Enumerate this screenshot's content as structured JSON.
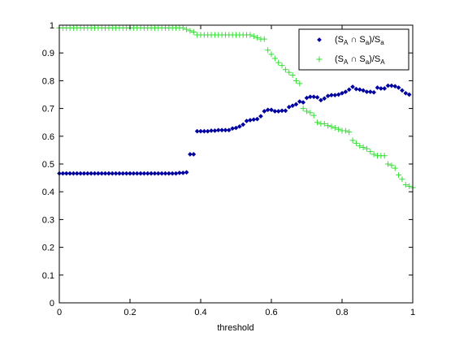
{
  "chart_data": {
    "type": "scatter",
    "xlabel": "threshold",
    "xlim": [
      0,
      1
    ],
    "ylim": [
      0,
      1
    ],
    "xticks": [
      "0",
      "0.2",
      "0.4",
      "0.6",
      "0.8",
      "1"
    ],
    "yticks": [
      "0",
      "0.1",
      "0.2",
      "0.3",
      "0.4",
      "0.5",
      "0.6",
      "0.7",
      "0.8",
      "0.9",
      "1"
    ],
    "grid": false,
    "legend_position": "top-right",
    "series": [
      {
        "name_main": "(S",
        "name_sub1": "A",
        "name_mid": " ∩ S",
        "name_sub2": "a",
        "name_end": ")/S",
        "name_sub3": "a",
        "marker": "diamond",
        "color": "#0000a0",
        "points": [
          [
            0.0,
            0.466
          ],
          [
            0.01,
            0.466
          ],
          [
            0.02,
            0.466
          ],
          [
            0.03,
            0.466
          ],
          [
            0.04,
            0.466
          ],
          [
            0.05,
            0.466
          ],
          [
            0.06,
            0.466
          ],
          [
            0.07,
            0.466
          ],
          [
            0.08,
            0.466
          ],
          [
            0.09,
            0.466
          ],
          [
            0.1,
            0.466
          ],
          [
            0.11,
            0.466
          ],
          [
            0.12,
            0.466
          ],
          [
            0.13,
            0.466
          ],
          [
            0.14,
            0.466
          ],
          [
            0.15,
            0.466
          ],
          [
            0.16,
            0.466
          ],
          [
            0.17,
            0.466
          ],
          [
            0.18,
            0.466
          ],
          [
            0.19,
            0.466
          ],
          [
            0.2,
            0.466
          ],
          [
            0.21,
            0.466
          ],
          [
            0.22,
            0.466
          ],
          [
            0.23,
            0.466
          ],
          [
            0.24,
            0.466
          ],
          [
            0.25,
            0.466
          ],
          [
            0.26,
            0.466
          ],
          [
            0.27,
            0.466
          ],
          [
            0.28,
            0.466
          ],
          [
            0.29,
            0.466
          ],
          [
            0.3,
            0.466
          ],
          [
            0.31,
            0.466
          ],
          [
            0.32,
            0.466
          ],
          [
            0.33,
            0.466
          ],
          [
            0.34,
            0.468
          ],
          [
            0.35,
            0.468
          ],
          [
            0.36,
            0.47
          ],
          [
            0.37,
            0.535
          ],
          [
            0.38,
            0.535
          ],
          [
            0.39,
            0.618
          ],
          [
            0.4,
            0.618
          ],
          [
            0.41,
            0.618
          ],
          [
            0.42,
            0.618
          ],
          [
            0.43,
            0.62
          ],
          [
            0.44,
            0.62
          ],
          [
            0.45,
            0.622
          ],
          [
            0.46,
            0.622
          ],
          [
            0.47,
            0.622
          ],
          [
            0.48,
            0.622
          ],
          [
            0.49,
            0.628
          ],
          [
            0.5,
            0.63
          ],
          [
            0.51,
            0.635
          ],
          [
            0.52,
            0.642
          ],
          [
            0.53,
            0.655
          ],
          [
            0.54,
            0.658
          ],
          [
            0.55,
            0.66
          ],
          [
            0.56,
            0.662
          ],
          [
            0.57,
            0.672
          ],
          [
            0.58,
            0.69
          ],
          [
            0.59,
            0.695
          ],
          [
            0.6,
            0.695
          ],
          [
            0.61,
            0.69
          ],
          [
            0.62,
            0.69
          ],
          [
            0.63,
            0.692
          ],
          [
            0.64,
            0.692
          ],
          [
            0.65,
            0.705
          ],
          [
            0.66,
            0.71
          ],
          [
            0.67,
            0.715
          ],
          [
            0.68,
            0.725
          ],
          [
            0.69,
            0.722
          ],
          [
            0.7,
            0.738
          ],
          [
            0.71,
            0.742
          ],
          [
            0.72,
            0.742
          ],
          [
            0.73,
            0.74
          ],
          [
            0.74,
            0.73
          ],
          [
            0.75,
            0.736
          ],
          [
            0.76,
            0.745
          ],
          [
            0.77,
            0.748
          ],
          [
            0.78,
            0.748
          ],
          [
            0.79,
            0.75
          ],
          [
            0.8,
            0.755
          ],
          [
            0.81,
            0.76
          ],
          [
            0.82,
            0.768
          ],
          [
            0.83,
            0.778
          ],
          [
            0.84,
            0.77
          ],
          [
            0.85,
            0.768
          ],
          [
            0.86,
            0.765
          ],
          [
            0.87,
            0.76
          ],
          [
            0.88,
            0.76
          ],
          [
            0.89,
            0.758
          ],
          [
            0.9,
            0.775
          ],
          [
            0.91,
            0.772
          ],
          [
            0.92,
            0.772
          ],
          [
            0.93,
            0.782
          ],
          [
            0.94,
            0.782
          ],
          [
            0.95,
            0.78
          ],
          [
            0.96,
            0.775
          ],
          [
            0.97,
            0.765
          ],
          [
            0.98,
            0.755
          ],
          [
            0.99,
            0.75
          ]
        ]
      },
      {
        "name_main": "(S",
        "name_sub1": "A",
        "name_mid": " ∩ S",
        "name_sub2": "a",
        "name_end": ")/S",
        "name_sub3": "A",
        "marker": "plus",
        "color": "#33dd33",
        "points": [
          [
            0.0,
            0.99
          ],
          [
            0.01,
            0.99
          ],
          [
            0.02,
            0.99
          ],
          [
            0.03,
            0.99
          ],
          [
            0.04,
            0.99
          ],
          [
            0.05,
            0.99
          ],
          [
            0.06,
            0.99
          ],
          [
            0.07,
            0.99
          ],
          [
            0.08,
            0.99
          ],
          [
            0.09,
            0.99
          ],
          [
            0.1,
            0.99
          ],
          [
            0.11,
            0.99
          ],
          [
            0.12,
            0.99
          ],
          [
            0.13,
            0.99
          ],
          [
            0.14,
            0.99
          ],
          [
            0.15,
            0.99
          ],
          [
            0.16,
            0.99
          ],
          [
            0.17,
            0.99
          ],
          [
            0.18,
            0.99
          ],
          [
            0.19,
            0.99
          ],
          [
            0.2,
            0.99
          ],
          [
            0.21,
            0.99
          ],
          [
            0.22,
            0.99
          ],
          [
            0.23,
            0.99
          ],
          [
            0.24,
            0.99
          ],
          [
            0.25,
            0.99
          ],
          [
            0.26,
            0.99
          ],
          [
            0.27,
            0.99
          ],
          [
            0.28,
            0.99
          ],
          [
            0.29,
            0.99
          ],
          [
            0.3,
            0.99
          ],
          [
            0.31,
            0.99
          ],
          [
            0.32,
            0.99
          ],
          [
            0.33,
            0.99
          ],
          [
            0.34,
            0.99
          ],
          [
            0.35,
            0.99
          ],
          [
            0.36,
            0.985
          ],
          [
            0.37,
            0.98
          ],
          [
            0.38,
            0.975
          ],
          [
            0.39,
            0.965
          ],
          [
            0.4,
            0.965
          ],
          [
            0.41,
            0.965
          ],
          [
            0.42,
            0.965
          ],
          [
            0.43,
            0.965
          ],
          [
            0.44,
            0.965
          ],
          [
            0.45,
            0.965
          ],
          [
            0.46,
            0.965
          ],
          [
            0.47,
            0.965
          ],
          [
            0.48,
            0.965
          ],
          [
            0.49,
            0.965
          ],
          [
            0.5,
            0.965
          ],
          [
            0.51,
            0.965
          ],
          [
            0.52,
            0.965
          ],
          [
            0.53,
            0.965
          ],
          [
            0.54,
            0.965
          ],
          [
            0.55,
            0.96
          ],
          [
            0.56,
            0.955
          ],
          [
            0.57,
            0.95
          ],
          [
            0.58,
            0.95
          ],
          [
            0.59,
            0.91
          ],
          [
            0.6,
            0.895
          ],
          [
            0.61,
            0.88
          ],
          [
            0.62,
            0.865
          ],
          [
            0.63,
            0.855
          ],
          [
            0.64,
            0.84
          ],
          [
            0.65,
            0.83
          ],
          [
            0.66,
            0.82
          ],
          [
            0.67,
            0.8
          ],
          [
            0.68,
            0.79
          ],
          [
            0.69,
            0.7
          ],
          [
            0.7,
            0.69
          ],
          [
            0.71,
            0.685
          ],
          [
            0.72,
            0.675
          ],
          [
            0.73,
            0.65
          ],
          [
            0.74,
            0.645
          ],
          [
            0.75,
            0.645
          ],
          [
            0.76,
            0.638
          ],
          [
            0.77,
            0.635
          ],
          [
            0.78,
            0.63
          ],
          [
            0.79,
            0.625
          ],
          [
            0.8,
            0.62
          ],
          [
            0.81,
            0.62
          ],
          [
            0.82,
            0.615
          ],
          [
            0.83,
            0.585
          ],
          [
            0.84,
            0.575
          ],
          [
            0.85,
            0.565
          ],
          [
            0.86,
            0.56
          ],
          [
            0.87,
            0.555
          ],
          [
            0.88,
            0.545
          ],
          [
            0.89,
            0.535
          ],
          [
            0.9,
            0.53
          ],
          [
            0.91,
            0.53
          ],
          [
            0.92,
            0.53
          ],
          [
            0.93,
            0.5
          ],
          [
            0.94,
            0.495
          ],
          [
            0.95,
            0.485
          ],
          [
            0.96,
            0.46
          ],
          [
            0.97,
            0.445
          ],
          [
            0.98,
            0.425
          ],
          [
            0.99,
            0.42
          ],
          [
            1.0,
            0.415
          ]
        ]
      }
    ]
  }
}
